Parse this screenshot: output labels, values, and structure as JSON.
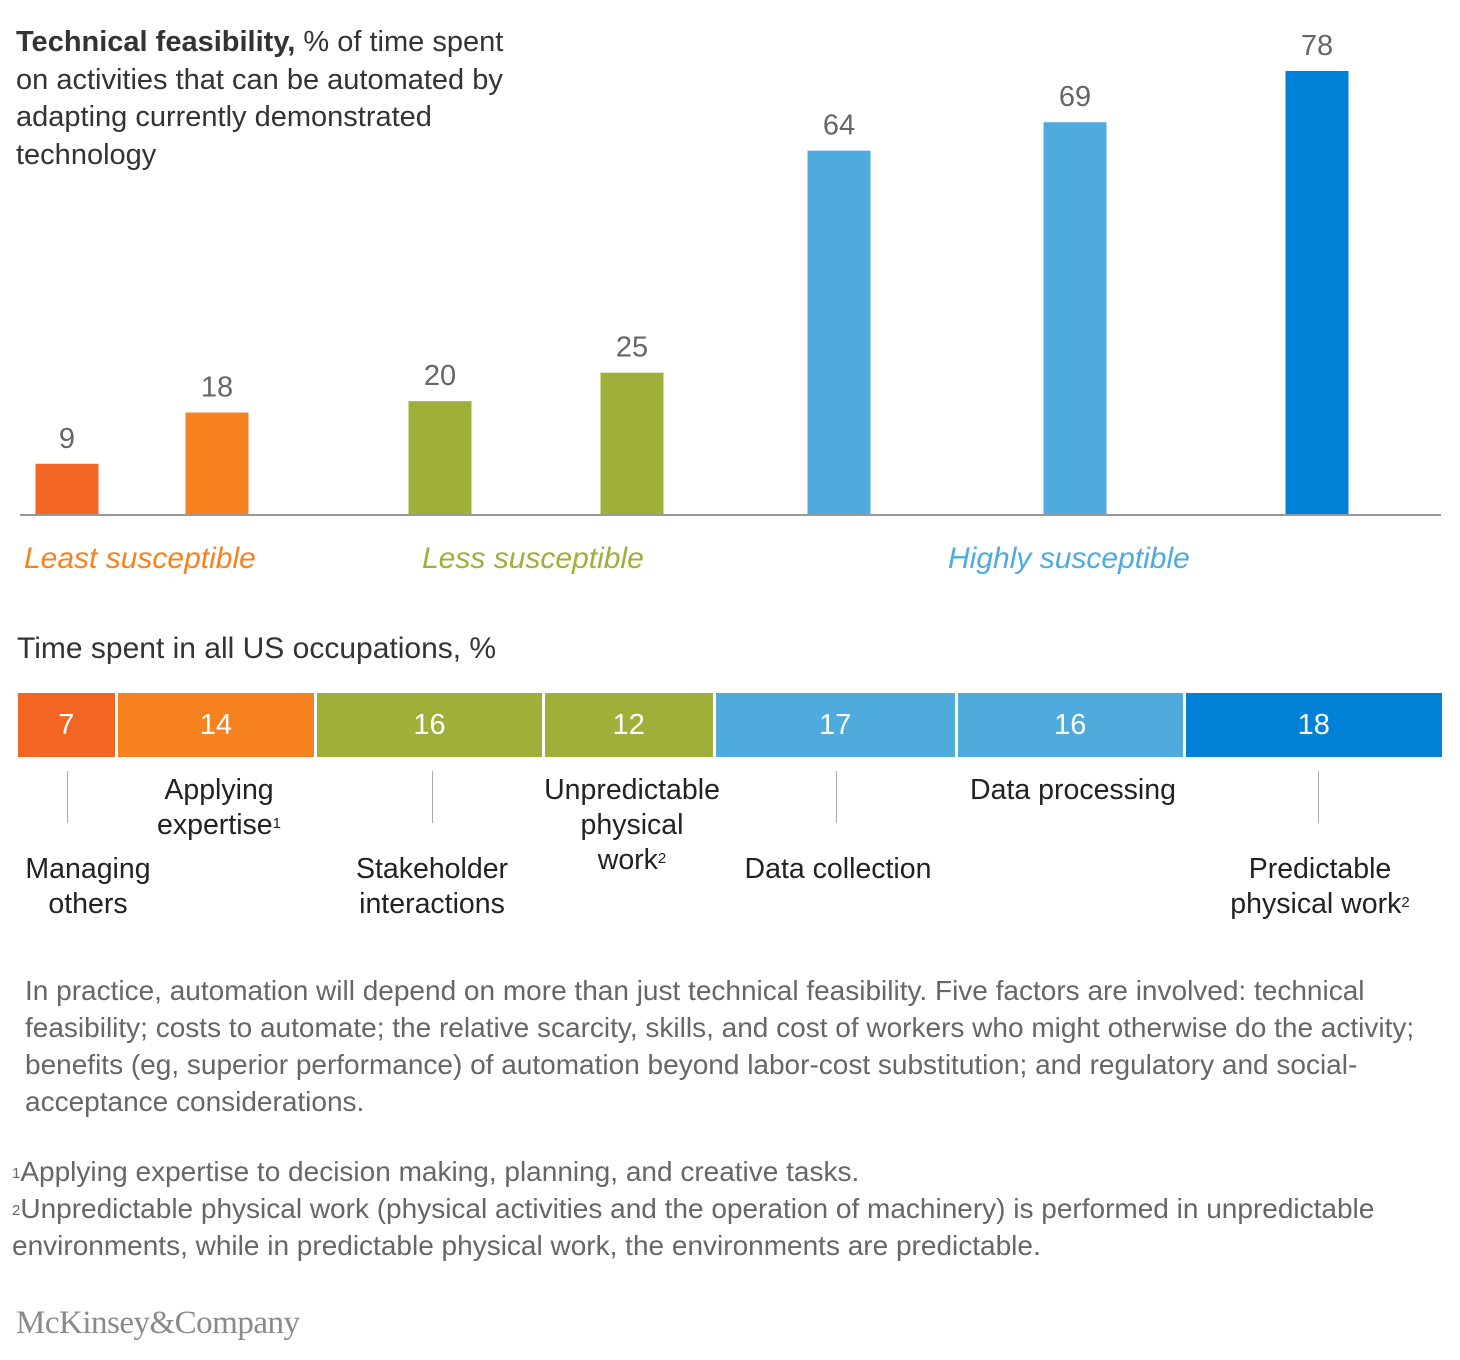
{
  "title": {
    "bold": "Technical feasibility,",
    "rest": " % of time spent on activities that can be automated by adapting currently demonstrated technology"
  },
  "chart_data": [
    {
      "type": "bar",
      "title": "Technical feasibility, % of time spent on activities that can be automated by adapting currently demonstrated technology",
      "categories": [
        "Managing others",
        "Applying expertise",
        "Stakeholder interactions",
        "Unpredictable physical work",
        "Data collection",
        "Data processing",
        "Predictable physical work"
      ],
      "values": [
        9,
        18,
        20,
        25,
        64,
        69,
        78
      ],
      "colors": [
        "#f26522",
        "#f5821f",
        "#a0ae3a",
        "#a0ae3a",
        "#4faade",
        "#4faade",
        "#0080d6"
      ],
      "groups": [
        {
          "label": "Least susceptible",
          "color": "#f5821f",
          "members": [
            0,
            1
          ]
        },
        {
          "label": "Less susceptible",
          "color": "#a0ae3a",
          "members": [
            2,
            3
          ]
        },
        {
          "label": "Highly susceptible",
          "color": "#4faade",
          "members": [
            4,
            5,
            6
          ]
        }
      ],
      "xlabel": "",
      "ylabel": "",
      "ylim": [
        0,
        78
      ],
      "grid": false,
      "legend": "none"
    },
    {
      "type": "bar",
      "subtype": "stacked-horizontal",
      "title": "Time spent in all US occupations, %",
      "categories": [
        "Managing others",
        "Applying expertise",
        "Stakeholder interactions",
        "Unpredictable physical work",
        "Data collection",
        "Data processing",
        "Predictable physical work"
      ],
      "values": [
        7,
        14,
        16,
        12,
        17,
        16,
        18
      ],
      "colors": [
        "#f26522",
        "#f5821f",
        "#a0ae3a",
        "#a0ae3a",
        "#4faade",
        "#4faade",
        "#0080d6"
      ]
    }
  ],
  "section2": {
    "title": "Time spent in all US occupations, %"
  },
  "category_labels": [
    {
      "lines": [
        "Managing",
        "others"
      ],
      "sup": ""
    },
    {
      "lines": [
        "Applying",
        "expertise"
      ],
      "sup": "1"
    },
    {
      "lines": [
        "Stakeholder",
        "interactions"
      ],
      "sup": ""
    },
    {
      "lines": [
        "Unpredictable",
        "physical",
        "work"
      ],
      "sup": "2"
    },
    {
      "lines": [
        "Data collection"
      ],
      "sup": ""
    },
    {
      "lines": [
        "Data processing"
      ],
      "sup": ""
    },
    {
      "lines": [
        "Predictable",
        "physical work"
      ],
      "sup": "2"
    }
  ],
  "body_text": "In practice, automation will depend on more than just technical feasibility. Five factors are involved: technical feasibility; costs to automate; the relative scarcity, skills, and cost of workers who might otherwise do the activity; benefits (eg, superior performance) of automation beyond labor-cost substitution; and regulatory and social-acceptance considerations.",
  "footnotes": [
    {
      "mark": "1",
      "text": "Applying expertise to decision making, planning, and creative tasks."
    },
    {
      "mark": "2",
      "text": "Unpredictable physical work (physical activities and the operation of machinery) is performed in unpredictable environments, while in predictable physical work, the environments are predictable."
    }
  ],
  "logo": "McKinsey&Company"
}
